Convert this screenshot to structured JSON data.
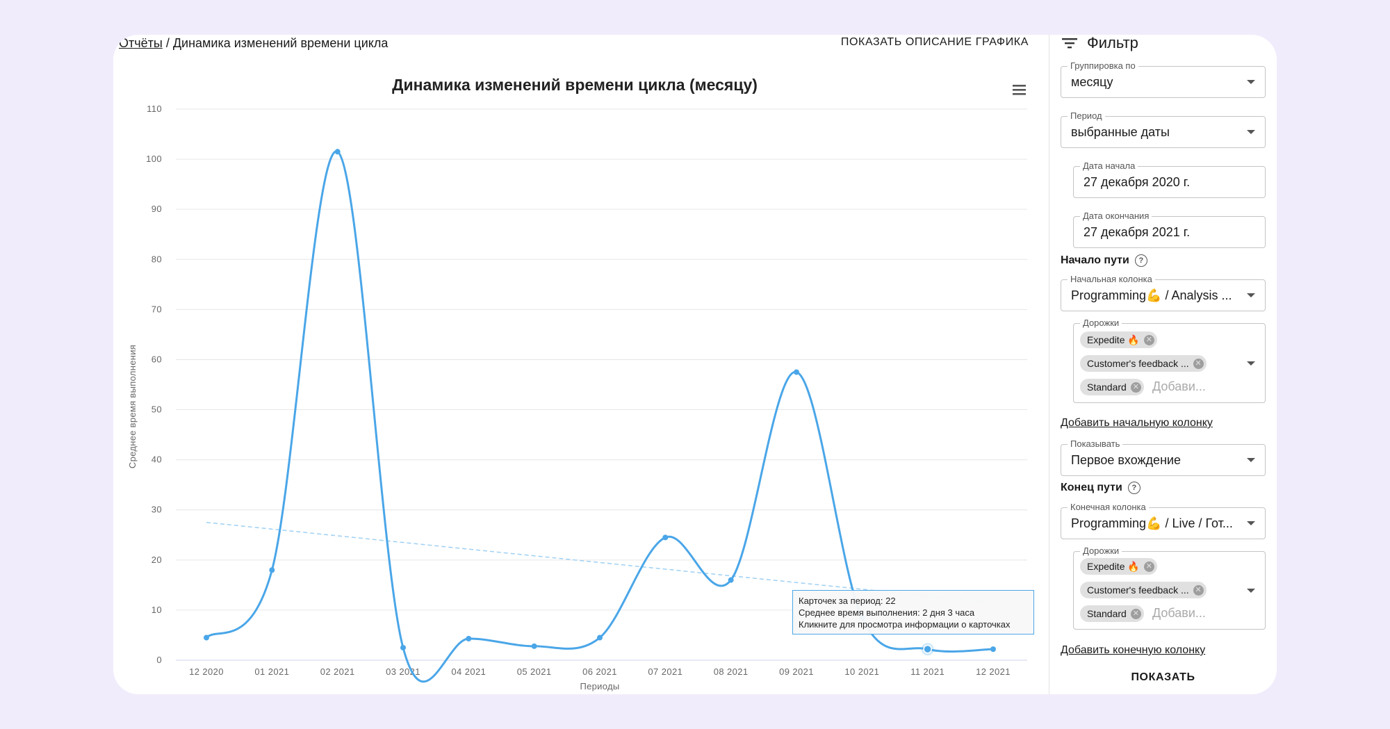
{
  "breadcrumb": {
    "root": "Отчёты",
    "separator": " / ",
    "current": "Динамика изменений времени цикла"
  },
  "header": {
    "show_description": "ПОКАЗАТЬ ОПИСАНИЕ ГРАФИКА"
  },
  "menu_icon": "hamburger-menu-icon",
  "colors": {
    "series": "#4aa6e8",
    "trend": "#9fd0f3",
    "grid": "#e6e6e6",
    "background": "#f1ecfc"
  },
  "chart_data": {
    "type": "line",
    "title": "Динамика изменений времени цикла (месяцу)",
    "xlabel": "Периоды",
    "ylabel": "Среднее время выполнения",
    "ylim": [
      0,
      110
    ],
    "yticks": [
      0,
      10,
      20,
      30,
      40,
      50,
      60,
      70,
      80,
      90,
      100,
      110
    ],
    "grid": true,
    "smooth": true,
    "categories": [
      "12 2020",
      "01 2021",
      "02 2021",
      "03 2021",
      "04 2021",
      "05 2021",
      "06 2021",
      "07 2021",
      "08 2021",
      "09 2021",
      "10 2021",
      "11 2021",
      "12 2021"
    ],
    "series": [
      {
        "values": [
          4.5,
          18,
          101.5,
          2.5,
          4.3,
          2.8,
          4.5,
          24.5,
          16,
          57.5,
          8.5,
          2.2,
          2.2
        ]
      }
    ],
    "trendline": {
      "style": "dashed",
      "start": 27.5,
      "end": 11.5
    },
    "highlighted_index": 11
  },
  "tooltip": {
    "line1": "Карточек за период: 22",
    "line2": "Среднее время выполнения: 2 дня 3 часа",
    "line3": "Кликните для просмотра информации о карточках"
  },
  "filter": {
    "title": "Фильтр",
    "grouping": {
      "label": "Группировка по",
      "value": "месяцу"
    },
    "period": {
      "label": "Период",
      "value": "выбранные даты"
    },
    "start_date": {
      "label": "Дата начала",
      "value": "27 декабря 2020 г."
    },
    "end_date": {
      "label": "Дата окончания",
      "value": "27 декабря 2021 г."
    },
    "path_start": {
      "title": "Начало пути",
      "column": {
        "label": "Начальная колонка",
        "value": "Programming💪  / Analysis ..."
      },
      "lanes": {
        "label": "Дорожки",
        "chips": [
          "Expedite 🔥",
          "Customer's feedback ...",
          "Standard"
        ],
        "placeholder": "Добави..."
      },
      "add_link": "Добавить начальную колонку"
    },
    "show": {
      "label": "Показывать",
      "value": "Первое вхождение"
    },
    "path_end": {
      "title": "Конец пути",
      "column": {
        "label": "Конечная колонка",
        "value": "Programming💪  / Live / Гот..."
      },
      "lanes": {
        "label": "Дорожки",
        "chips": [
          "Expedite 🔥",
          "Customer's feedback ...",
          "Standard"
        ],
        "placeholder": "Добави..."
      },
      "add_link": "Добавить конечную колонку"
    },
    "submit": "ПОКАЗАТЬ"
  }
}
